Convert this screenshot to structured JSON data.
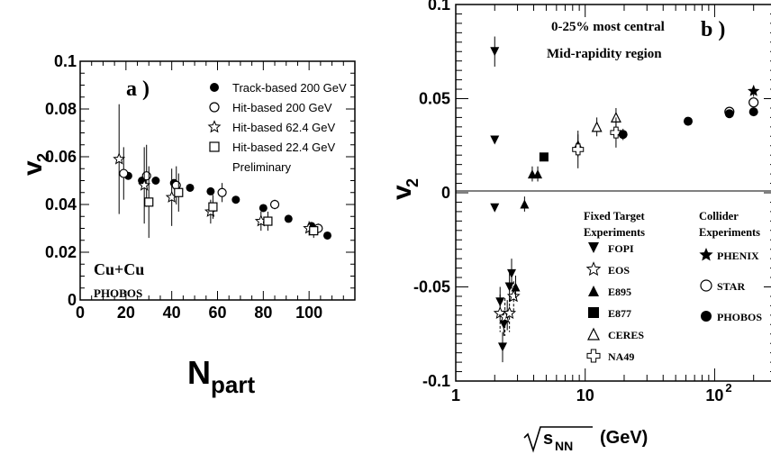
{
  "chart_data": [
    {
      "type": "scatter",
      "panel_label": "a )",
      "xlabel": "N",
      "xlabel_sub": "part",
      "ylabel": "v",
      "ylabel_sub": "2",
      "xlim": [
        0,
        120
      ],
      "ylim": [
        0,
        0.1
      ],
      "xticks": [
        "0",
        "20",
        "40",
        "60",
        "80",
        "100"
      ],
      "yticks": [
        "0",
        "0.02",
        "0.04",
        "0.06",
        "0.08",
        "0.1"
      ],
      "annotations": [
        "Cu+Cu",
        "PHOBOS"
      ],
      "legend": [
        "Track-based 200 GeV",
        "Hit-based 200 GeV",
        "Hit-based 62.4 GeV",
        "Hit-based 22.4 GeV",
        "Preliminary"
      ],
      "series": [
        {
          "name": "Track-based 200 GeV",
          "marker": "filled-circle",
          "points": [
            [
              21,
              0.052
            ],
            [
              27,
              0.05
            ],
            [
              33,
              0.05
            ],
            [
              41,
              0.049
            ],
            [
              48,
              0.047
            ],
            [
              57,
              0.0455
            ],
            [
              68,
              0.042
            ],
            [
              80,
              0.0385
            ],
            [
              91,
              0.034
            ],
            [
              101,
              0.031
            ],
            [
              108,
              0.027
            ]
          ]
        },
        {
          "name": "Hit-based 200 GeV",
          "marker": "open-circle",
          "points": [
            [
              19,
              0.053,
              0.011
            ],
            [
              29,
              0.052,
              0.013
            ],
            [
              42,
              0.048,
              0.008
            ],
            [
              62,
              0.045,
              0.004
            ],
            [
              85,
              0.04,
              0.002
            ],
            [
              104,
              0.03,
              0.002
            ]
          ]
        },
        {
          "name": "Hit-based 62.4 GeV",
          "marker": "open-star",
          "points": [
            [
              17,
              0.059,
              0.023
            ],
            [
              28,
              0.048,
              0.016
            ],
            [
              40,
              0.043,
              0.012
            ],
            [
              57,
              0.037,
              0.005
            ],
            [
              79,
              0.033,
              0.004
            ],
            [
              100,
              0.03,
              0.003
            ]
          ]
        },
        {
          "name": "Hit-based 22.4 GeV",
          "marker": "open-square",
          "points": [
            [
              30,
              0.041,
              0.015
            ],
            [
              43,
              0.045,
              0.008
            ],
            [
              58,
              0.039,
              0.005
            ],
            [
              82,
              0.033,
              0.004
            ],
            [
              102,
              0.029,
              0.003
            ]
          ]
        }
      ]
    },
    {
      "type": "scatter",
      "panel_label": "b )",
      "xlabel": "(GeV)",
      "xlabel_math": "s",
      "xlabel_math_sub": "NN",
      "ylabel": "v",
      "ylabel_sub": "2",
      "xscale": "log",
      "xlim": [
        1,
        300
      ],
      "ylim": [
        -0.1,
        0.1
      ],
      "xticks": [
        "1",
        "10",
        "10"
      ],
      "xtick_exp": "2",
      "yticks": [
        "-0.1",
        "-0.05",
        "0",
        "0.05",
        "0.1"
      ],
      "annotations": [
        "0-25% most central",
        "Mid-rapidity region"
      ],
      "legend_fixed_title": [
        "Fixed Target",
        "Experiments"
      ],
      "legend_collider_title": [
        "Collider",
        "Experiments"
      ],
      "legend_fixed": [
        "FOPI",
        "EOS",
        "E895",
        "E877",
        "CERES",
        "NA49"
      ],
      "legend_collider": [
        "PHENIX",
        "STAR",
        "PHOBOS"
      ],
      "series": [
        {
          "name": "FOPI",
          "marker": "filled-triangle-down",
          "points": [
            [
              2.0,
              0.075,
              0.008
            ],
            [
              2.0,
              0.028,
              0
            ],
            [
              2.0,
              -0.008,
              0
            ],
            [
              2.2,
              -0.058,
              0.008
            ],
            [
              2.3,
              -0.082,
              0.008
            ],
            [
              2.35,
              -0.07,
              0.006
            ],
            [
              2.5,
              -0.065,
              0.008
            ],
            [
              2.6,
              -0.05,
              0.008
            ],
            [
              2.7,
              -0.043,
              0.008
            ]
          ]
        },
        {
          "name": "EOS",
          "marker": "open-star",
          "points": [
            [
              2.2,
              -0.064,
              0.01
            ],
            [
              2.4,
              -0.066,
              0.01
            ],
            [
              2.6,
              -0.064,
              0.01
            ],
            [
              2.8,
              -0.055,
              0.008
            ]
          ]
        },
        {
          "name": "E895",
          "marker": "filled-triangle-up",
          "points": [
            [
              2.9,
              -0.05,
              0.006
            ],
            [
              3.4,
              -0.006,
              0.004
            ],
            [
              3.9,
              0.01,
              0.004
            ],
            [
              4.3,
              0.01,
              0.004
            ]
          ]
        },
        {
          "name": "E877",
          "marker": "filled-square",
          "points": [
            [
              4.8,
              0.019,
              0
            ]
          ]
        },
        {
          "name": "CERES",
          "marker": "open-triangle-up",
          "points": [
            [
              8.8,
              0.025,
              0.006
            ],
            [
              12.3,
              0.035,
              0.005
            ],
            [
              17.3,
              0.04,
              0.005
            ]
          ]
        },
        {
          "name": "NA49",
          "marker": "open-cross",
          "points": [
            [
              8.8,
              0.023,
              0.01
            ],
            [
              17.3,
              0.032,
              0.008
            ]
          ]
        },
        {
          "name": "PHENIX",
          "marker": "filled-star",
          "points": [
            [
              200,
              0.054,
              0.003
            ]
          ]
        },
        {
          "name": "STAR",
          "marker": "open-circle",
          "points": [
            [
              130,
              0.043,
              0.002
            ],
            [
              200,
              0.048,
              0.002
            ]
          ]
        },
        {
          "name": "PHOBOS",
          "marker": "filled-circle",
          "points": [
            [
              19.6,
              0.031,
              0.003
            ],
            [
              62.4,
              0.038,
              0.002
            ],
            [
              130,
              0.042,
              0.002
            ],
            [
              200,
              0.043,
              0.002
            ]
          ]
        }
      ]
    }
  ]
}
